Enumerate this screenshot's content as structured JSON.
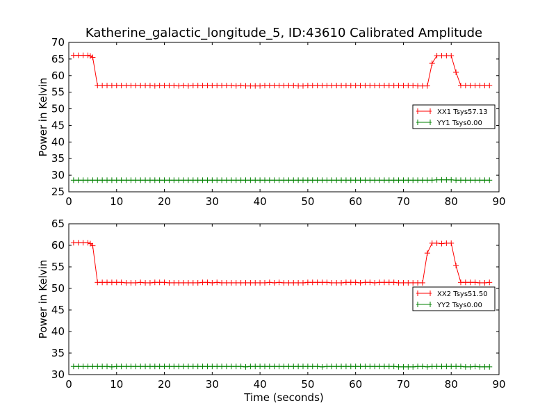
{
  "chart_data": [
    {
      "type": "line",
      "title": "Katherine_galactic_longitude_5, ID:43610 Calibrated Amplitude",
      "xlabel": "",
      "ylabel": "Power in Kelvin",
      "xlim": [
        0,
        90
      ],
      "ylim": [
        25,
        70
      ],
      "xticks": [
        0,
        10,
        20,
        30,
        40,
        50,
        60,
        70,
        80,
        90
      ],
      "yticks": [
        25,
        30,
        35,
        40,
        45,
        50,
        55,
        60,
        65,
        70
      ],
      "legend": "center-right",
      "series": [
        {
          "name": "XX1 Tsys57.13",
          "color": "#ff0000",
          "x": [
            1,
            2,
            3,
            4,
            4.5,
            5,
            6,
            7,
            8,
            9,
            10,
            11,
            12,
            13,
            14,
            15,
            16,
            17,
            18,
            19,
            20,
            21,
            22,
            23,
            24,
            25,
            26,
            27,
            28,
            29,
            30,
            31,
            32,
            33,
            34,
            35,
            36,
            37,
            38,
            39,
            40,
            41,
            42,
            43,
            44,
            45,
            46,
            47,
            48,
            49,
            50,
            51,
            52,
            53,
            54,
            55,
            56,
            57,
            58,
            59,
            60,
            61,
            62,
            63,
            64,
            65,
            66,
            67,
            68,
            69,
            70,
            71,
            72,
            73,
            74,
            75,
            76,
            77,
            78,
            79,
            80,
            81,
            82,
            83,
            84,
            85,
            86,
            87,
            88
          ],
          "y": [
            66.1,
            66.1,
            66.1,
            66.1,
            65.9,
            65.5,
            57.0,
            57.0,
            57.0,
            57.0,
            57.0,
            57.0,
            57.0,
            57.0,
            57.0,
            57.0,
            57.0,
            57.0,
            56.9,
            57.0,
            57.0,
            57.0,
            57.0,
            56.9,
            57.0,
            56.9,
            57.0,
            57.0,
            57.0,
            57.0,
            57.0,
            57.0,
            57.0,
            57.0,
            57.0,
            56.9,
            57.0,
            56.9,
            56.9,
            56.9,
            56.9,
            57.0,
            57.0,
            57.0,
            57.0,
            57.0,
            57.0,
            57.0,
            56.9,
            56.9,
            57.0,
            57.0,
            57.0,
            57.0,
            57.0,
            57.0,
            57.0,
            57.0,
            57.0,
            57.0,
            57.0,
            57.0,
            57.0,
            57.0,
            57.0,
            57.0,
            57.0,
            57.0,
            57.0,
            57.0,
            57.0,
            57.0,
            57.0,
            56.9,
            56.9,
            56.9,
            63.7,
            66.0,
            66.0,
            66.0,
            66.0,
            61.0,
            57.0,
            57.0,
            57.0,
            57.0,
            57.0,
            57.0,
            57.0
          ]
        },
        {
          "name": "YY1 Tsys0.00",
          "color": "#008000",
          "x": [
            1,
            2,
            3,
            4,
            5,
            6,
            7,
            8,
            9,
            10,
            11,
            12,
            13,
            14,
            15,
            16,
            17,
            18,
            19,
            20,
            21,
            22,
            23,
            24,
            25,
            26,
            27,
            28,
            29,
            30,
            31,
            32,
            33,
            34,
            35,
            36,
            37,
            38,
            39,
            40,
            41,
            42,
            43,
            44,
            45,
            46,
            47,
            48,
            49,
            50,
            51,
            52,
            53,
            54,
            55,
            56,
            57,
            58,
            59,
            60,
            61,
            62,
            63,
            64,
            65,
            66,
            67,
            68,
            69,
            70,
            71,
            72,
            73,
            74,
            75,
            76,
            77,
            78,
            79,
            80,
            81,
            82,
            83,
            84,
            85,
            86,
            87,
            88
          ],
          "y": [
            28.5,
            28.5,
            28.5,
            28.5,
            28.5,
            28.5,
            28.5,
            28.5,
            28.5,
            28.5,
            28.5,
            28.5,
            28.5,
            28.5,
            28.5,
            28.5,
            28.5,
            28.5,
            28.5,
            28.5,
            28.5,
            28.5,
            28.5,
            28.5,
            28.5,
            28.5,
            28.5,
            28.5,
            28.5,
            28.5,
            28.5,
            28.5,
            28.5,
            28.5,
            28.5,
            28.5,
            28.5,
            28.5,
            28.5,
            28.5,
            28.5,
            28.5,
            28.5,
            28.5,
            28.5,
            28.5,
            28.5,
            28.5,
            28.5,
            28.5,
            28.5,
            28.5,
            28.5,
            28.5,
            28.5,
            28.5,
            28.5,
            28.5,
            28.5,
            28.5,
            28.5,
            28.5,
            28.5,
            28.5,
            28.5,
            28.5,
            28.5,
            28.5,
            28.5,
            28.5,
            28.5,
            28.5,
            28.5,
            28.5,
            28.5,
            28.5,
            28.6,
            28.6,
            28.6,
            28.6,
            28.5,
            28.5,
            28.5,
            28.5,
            28.5,
            28.5,
            28.5,
            28.5
          ]
        }
      ]
    },
    {
      "type": "line",
      "title": "",
      "xlabel": "Time (seconds)",
      "ylabel": "Power in Kelvin",
      "xlim": [
        0,
        90
      ],
      "ylim": [
        30,
        65
      ],
      "xticks": [
        0,
        10,
        20,
        30,
        40,
        50,
        60,
        70,
        80,
        90
      ],
      "yticks": [
        30,
        35,
        40,
        45,
        50,
        55,
        60,
        65
      ],
      "legend": "center-right",
      "series": [
        {
          "name": "XX2 Tsys51.50",
          "color": "#ff0000",
          "x": [
            1,
            2,
            3,
            4,
            4.5,
            5,
            6,
            7,
            8,
            9,
            10,
            11,
            12,
            13,
            14,
            15,
            16,
            17,
            18,
            19,
            20,
            21,
            22,
            23,
            24,
            25,
            26,
            27,
            28,
            29,
            30,
            31,
            32,
            33,
            34,
            35,
            36,
            37,
            38,
            39,
            40,
            41,
            42,
            43,
            44,
            45,
            46,
            47,
            48,
            49,
            50,
            51,
            52,
            53,
            54,
            55,
            56,
            57,
            58,
            59,
            60,
            61,
            62,
            63,
            64,
            65,
            66,
            67,
            68,
            69,
            70,
            71,
            72,
            73,
            74,
            75,
            76,
            77,
            78,
            79,
            80,
            81,
            82,
            83,
            84,
            85,
            86,
            87,
            88
          ],
          "y": [
            60.6,
            60.6,
            60.6,
            60.6,
            60.4,
            59.9,
            51.4,
            51.4,
            51.4,
            51.4,
            51.4,
            51.4,
            51.3,
            51.3,
            51.3,
            51.4,
            51.3,
            51.3,
            51.4,
            51.4,
            51.4,
            51.3,
            51.3,
            51.3,
            51.3,
            51.3,
            51.3,
            51.3,
            51.4,
            51.4,
            51.3,
            51.4,
            51.3,
            51.3,
            51.3,
            51.3,
            51.3,
            51.3,
            51.3,
            51.3,
            51.3,
            51.3,
            51.4,
            51.3,
            51.4,
            51.3,
            51.3,
            51.3,
            51.3,
            51.3,
            51.4,
            51.4,
            51.4,
            51.4,
            51.4,
            51.3,
            51.3,
            51.3,
            51.4,
            51.4,
            51.4,
            51.3,
            51.4,
            51.4,
            51.3,
            51.4,
            51.4,
            51.4,
            51.4,
            51.3,
            51.3,
            51.3,
            51.3,
            51.3,
            51.3,
            58.2,
            60.5,
            60.5,
            60.4,
            60.5,
            60.5,
            55.3,
            51.4,
            51.4,
            51.4,
            51.4,
            51.3,
            51.3,
            51.4
          ]
        },
        {
          "name": "YY2 Tsys0.00",
          "color": "#008000",
          "x": [
            1,
            2,
            3,
            4,
            5,
            6,
            7,
            8,
            9,
            10,
            11,
            12,
            13,
            14,
            15,
            16,
            17,
            18,
            19,
            20,
            21,
            22,
            23,
            24,
            25,
            26,
            27,
            28,
            29,
            30,
            31,
            32,
            33,
            34,
            35,
            36,
            37,
            38,
            39,
            40,
            41,
            42,
            43,
            44,
            45,
            46,
            47,
            48,
            49,
            50,
            51,
            52,
            53,
            54,
            55,
            56,
            57,
            58,
            59,
            60,
            61,
            62,
            63,
            64,
            65,
            66,
            67,
            68,
            69,
            70,
            71,
            72,
            73,
            74,
            75,
            76,
            77,
            78,
            79,
            80,
            81,
            82,
            83,
            84,
            85,
            86,
            87,
            88
          ],
          "y": [
            31.9,
            31.9,
            31.9,
            31.9,
            31.9,
            31.9,
            31.9,
            31.9,
            31.8,
            31.9,
            31.9,
            31.9,
            31.9,
            31.9,
            31.9,
            31.9,
            31.9,
            31.9,
            31.9,
            31.9,
            31.9,
            31.9,
            31.9,
            31.9,
            31.9,
            31.9,
            31.9,
            31.9,
            31.9,
            31.9,
            31.9,
            31.9,
            31.9,
            31.9,
            31.9,
            31.9,
            31.8,
            31.9,
            31.9,
            31.9,
            31.9,
            31.9,
            31.9,
            31.9,
            31.9,
            31.9,
            31.9,
            31.9,
            31.9,
            31.9,
            31.9,
            31.9,
            31.8,
            31.9,
            31.9,
            31.9,
            31.9,
            31.9,
            31.9,
            31.9,
            31.9,
            31.9,
            31.9,
            31.9,
            31.9,
            31.9,
            31.9,
            31.9,
            31.8,
            31.8,
            31.8,
            31.8,
            31.9,
            31.9,
            31.8,
            31.9,
            31.9,
            31.9,
            31.9,
            31.9,
            31.9,
            31.9,
            31.8,
            31.8,
            31.9,
            31.8,
            31.8,
            31.8
          ]
        }
      ]
    }
  ]
}
